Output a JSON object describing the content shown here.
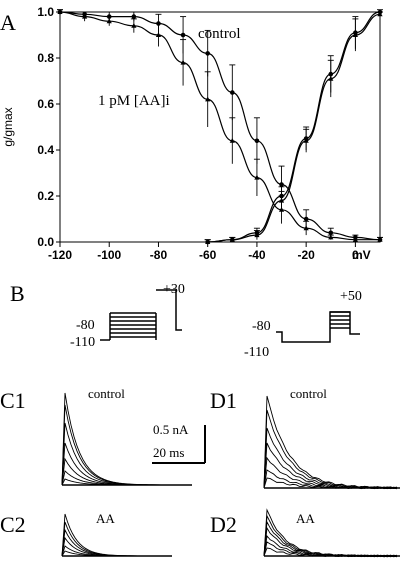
{
  "panels": {
    "A": "A",
    "B": "B",
    "C1": "C1",
    "C2": "C2",
    "D1": "D1",
    "D2": "D2"
  },
  "chart_data": {
    "type": "line",
    "xlabel": "mV",
    "ylabel": "g/gmax",
    "xlim": [
      -120,
      10
    ],
    "ylim": [
      0,
      1.0
    ],
    "xticks": [
      -120,
      -100,
      -80,
      -60,
      -40,
      -20,
      0
    ],
    "yticks": [
      0.0,
      0.2,
      0.4,
      0.6,
      0.8,
      1.0
    ],
    "xtick_labels": [
      "-120",
      "-100",
      "-80",
      "-60",
      "-40",
      "-20",
      "0"
    ],
    "ytick_labels": [
      "0.0",
      "0.2",
      "0.4",
      "0.6",
      "0.8",
      "1.0"
    ],
    "annotations": [
      "control",
      "1 pM [AA]i"
    ],
    "series": [
      {
        "label": "control",
        "kind": "inactivation",
        "x": [
          -120,
          -110,
          -100,
          -90,
          -80,
          -70,
          -60,
          -50,
          -40,
          -30,
          -20,
          -10,
          0,
          10
        ],
        "y": [
          1.0,
          0.99,
          0.98,
          0.98,
          0.95,
          0.9,
          0.82,
          0.65,
          0.44,
          0.25,
          0.1,
          0.04,
          0.02,
          0.01
        ],
        "err": [
          0.01,
          0.01,
          0.02,
          0.02,
          0.04,
          0.08,
          0.1,
          0.12,
          0.1,
          0.08,
          0.04,
          0.02,
          0.01,
          0.01
        ]
      },
      {
        "label": "1 pM [AA]i",
        "kind": "inactivation",
        "x": [
          -120,
          -110,
          -100,
          -90,
          -80,
          -70,
          -60,
          -50,
          -40,
          -30,
          -20,
          -10,
          0,
          10
        ],
        "y": [
          1.0,
          0.98,
          0.96,
          0.94,
          0.9,
          0.78,
          0.62,
          0.44,
          0.28,
          0.14,
          0.06,
          0.02,
          0.01,
          0.01
        ],
        "err": [
          0.01,
          0.02,
          0.02,
          0.03,
          0.05,
          0.1,
          0.12,
          0.1,
          0.08,
          0.06,
          0.03,
          0.01,
          0.01,
          0.01
        ]
      },
      {
        "label": "control",
        "kind": "activation",
        "x": [
          -60,
          -50,
          -40,
          -30,
          -20,
          -10,
          0,
          10
        ],
        "y": [
          0.0,
          0.01,
          0.04,
          0.2,
          0.45,
          0.73,
          0.91,
          1.0
        ],
        "err": [
          0.01,
          0.01,
          0.02,
          0.04,
          0.05,
          0.08,
          0.07,
          0.01
        ]
      },
      {
        "label": "1 pM [AA]i",
        "kind": "activation",
        "x": [
          -60,
          -50,
          -40,
          -30,
          -20,
          -10,
          0,
          10
        ],
        "y": [
          0.0,
          0.01,
          0.03,
          0.18,
          0.44,
          0.71,
          0.9,
          0.99
        ],
        "err": [
          0.01,
          0.01,
          0.02,
          0.04,
          0.05,
          0.08,
          0.07,
          0.01
        ]
      }
    ]
  },
  "protocols": {
    "left": {
      "hold": "-80",
      "low": "-110",
      "step": "+30"
    },
    "right": {
      "hold": "-80",
      "low": "-110",
      "step": "+50"
    }
  },
  "traces": {
    "C1_label": "control",
    "C2_label": "AA",
    "D1_label": "control",
    "D2_label": "AA",
    "scale_current": "0.5 nA",
    "scale_time": "20 ms"
  }
}
